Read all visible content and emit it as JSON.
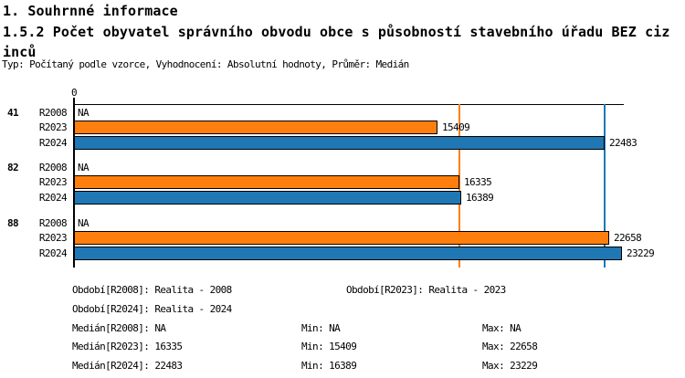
{
  "header": {
    "section": "1. Souhrnné informace",
    "title": "1.5.2 Počet obyvatel správního obvodu obce s působností stavebního úřadu BEZ cizinců",
    "meta": "Typ: Počítaný podle vzorce, Vyhodnocení: Absolutní hodnoty, Průměr: Medián"
  },
  "chart_data": {
    "type": "bar",
    "orientation": "horizontal",
    "x_axis": {
      "zero_label": "0",
      "min": 0,
      "max": 23300,
      "grid": false
    },
    "categories": [
      "41",
      "82",
      "88"
    ],
    "series": [
      {
        "name": "R2008",
        "color": null,
        "na_label": "NA",
        "values": [
          null,
          null,
          null
        ]
      },
      {
        "name": "R2023",
        "color": "#FF7F0E",
        "values": [
          15409,
          16335,
          22658
        ]
      },
      {
        "name": "R2024",
        "color": "#1F77B4",
        "values": [
          22483,
          16389,
          23229
        ]
      }
    ],
    "reference_lines": [
      {
        "value": 16335,
        "color": "#FF7F0E"
      },
      {
        "value": 22483,
        "color": "#1F77B4"
      }
    ],
    "value_labels_shown": true
  },
  "legend": {
    "rows": [
      [
        {
          "col": "a",
          "text": "Období[R2008]: Realita - 2008"
        },
        {
          "col": "b2",
          "text": "Období[R2023]: Realita - 2023"
        }
      ],
      [
        {
          "col": "a",
          "text": "Období[R2024]: Realita - 2024"
        }
      ],
      [
        {
          "col": "a",
          "text": "Medián[R2008]: NA"
        },
        {
          "col": "b",
          "text": "Min: NA"
        },
        {
          "col": "c",
          "text": "Max: NA"
        }
      ],
      [
        {
          "col": "a",
          "text": "Medián[R2023]: 16335"
        },
        {
          "col": "b",
          "text": "Min: 15409"
        },
        {
          "col": "c",
          "text": "Max: 22658"
        }
      ],
      [
        {
          "col": "a",
          "text": "Medián[R2024]: 22483"
        },
        {
          "col": "b",
          "text": "Min: 16389"
        },
        {
          "col": "c",
          "text": "Max: 23229"
        }
      ]
    ]
  },
  "colors": {
    "series_r2023": "#FF7F0E",
    "series_r2024": "#1F77B4",
    "axis": "#000000",
    "background": "#FFFFFF"
  }
}
